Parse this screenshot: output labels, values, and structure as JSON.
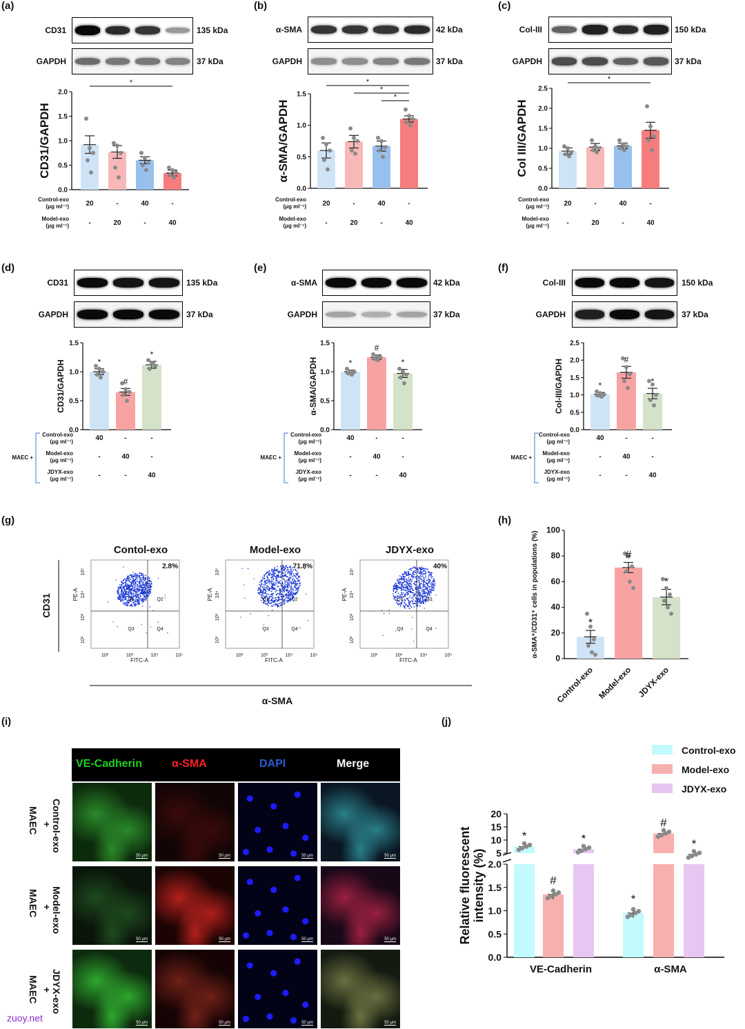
{
  "panels": {
    "a": "(a)",
    "b": "(b)",
    "c": "(c)",
    "d": "(d)",
    "e": "(e)",
    "f": "(f)",
    "g": "(g)",
    "h": "(h)",
    "i": "(i)",
    "j": "(j)"
  },
  "blots": {
    "a": {
      "top": "CD31",
      "top_kda": "135 kDa",
      "bottom": "GAPDH",
      "bottom_kda": "37 kDa"
    },
    "b": {
      "top": "α-SMA",
      "top_kda": "42 kDa",
      "bottom": "GAPDH",
      "bottom_kda": "37 kDa"
    },
    "c": {
      "top": "Col-III",
      "top_kda": "150 kDa",
      "bottom": "GAPDH",
      "bottom_kda": "37 kDa"
    },
    "d": {
      "top": "CD31",
      "top_kda": "135 kDa",
      "bottom": "GAPDH",
      "bottom_kda": "37 kDa"
    },
    "e": {
      "top": "α-SMA",
      "top_kda": "42 kDa",
      "bottom": "GAPDH",
      "bottom_kda": "37 kDa"
    },
    "f": {
      "top": "Col-III",
      "top_kda": "150 kDa",
      "bottom": "GAPDH",
      "bottom_kda": "37 kDa"
    }
  },
  "treatment_table": {
    "control_exo": "Control-exo",
    "model_exo": "Model-exo",
    "jdyx_exo": "JDYX-exo",
    "unit": "(μg ml⁻¹)",
    "maec": "MAEC +",
    "abc_control": [
      "20",
      "-",
      "40",
      "-"
    ],
    "abc_model": [
      "-",
      "20",
      "-",
      "40"
    ],
    "def_control": [
      "40",
      "-",
      "-"
    ],
    "def_model": [
      "-",
      "40",
      "-"
    ],
    "def_jdyx": [
      "-",
      "-",
      "40"
    ]
  },
  "flow": {
    "titles": [
      "Contol-exo",
      "Model-exo",
      "JDYX-exo"
    ],
    "percents": [
      "2.8%",
      "71.8%",
      "40%"
    ],
    "y_axis": "CD31",
    "x_axis": "α-SMA",
    "pe": "PE-A",
    "fitc": "FITC-A",
    "quadrants": [
      "Q1",
      "Q2",
      "Q3",
      "Q4"
    ],
    "ticks": [
      "10²",
      "10³",
      "10⁴",
      "10⁵"
    ]
  },
  "microscopy": {
    "columns": [
      "VE-Cadherin",
      "α-SMA",
      "DAPI",
      "Merge"
    ],
    "column_colors": [
      "#1fd11f",
      "#ff2020",
      "#2a5bd6",
      "#ffffff"
    ],
    "rows": [
      {
        "label": "Control-exo",
        "plus": "+",
        "cell": "MAEC"
      },
      {
        "label": "Model-exo",
        "plus": "+",
        "cell": "MAEC"
      },
      {
        "label": "JDYX-exo",
        "plus": "+",
        "cell": "MAEC"
      }
    ],
    "scale_bar": "50 μm"
  },
  "watermark": "zuoy.net",
  "chart_data": [
    {
      "id": "a",
      "type": "bar",
      "ylabel": "CD31/GAPDH",
      "ylim": [
        0,
        2.0
      ],
      "yticks": [
        "0.0",
        "0.5",
        "1.0",
        "1.5",
        "2.0"
      ],
      "values": [
        0.92,
        0.77,
        0.6,
        0.34
      ],
      "errors": [
        0.18,
        0.13,
        0.07,
        0.06
      ],
      "colors": [
        "#cfe3f6",
        "#f8b8b8",
        "#98c0ec",
        "#f57d7d"
      ],
      "points": [
        [
          1.45,
          0.85,
          0.75,
          0.6,
          0.35
        ],
        [
          0.95,
          0.9,
          0.75,
          0.45,
          0.25
        ],
        [
          0.75,
          0.65,
          0.55,
          0.5,
          0.4
        ],
        [
          0.45,
          0.4,
          0.35,
          0.3,
          0.25
        ]
      ],
      "significance": [
        {
          "from": 0,
          "to": 3,
          "label": "*"
        }
      ]
    },
    {
      "id": "b",
      "type": "bar",
      "ylabel": "α-SMA/GAPDH",
      "ylim": [
        0,
        1.5
      ],
      "yticks": [
        "0.0",
        "0.5",
        "1.0",
        "1.5"
      ],
      "values": [
        0.6,
        0.74,
        0.67,
        1.1
      ],
      "errors": [
        0.12,
        0.1,
        0.08,
        0.05
      ],
      "colors": [
        "#cfe3f6",
        "#f8b8b8",
        "#98c0ec",
        "#f57d7d"
      ],
      "points": [
        [
          0.8,
          0.7,
          0.6,
          0.45,
          0.3
        ],
        [
          0.95,
          0.8,
          0.75,
          0.6,
          0.55
        ],
        [
          0.8,
          0.75,
          0.65,
          0.6,
          0.5
        ],
        [
          1.25,
          1.15,
          1.1,
          1.05,
          1.0
        ]
      ],
      "significance": [
        {
          "from": 0,
          "to": 3,
          "label": "*"
        },
        {
          "from": 1,
          "to": 3,
          "label": "*"
        },
        {
          "from": 2,
          "to": 3,
          "label": "*"
        }
      ]
    },
    {
      "id": "c",
      "type": "bar",
      "ylabel": "Col III/GAPDH",
      "ylim": [
        0,
        2.5
      ],
      "yticks": [
        "0.0",
        "0.5",
        "1.0",
        "1.5",
        "2.0",
        "2.5"
      ],
      "values": [
        0.93,
        1.03,
        1.06,
        1.45
      ],
      "errors": [
        0.08,
        0.09,
        0.07,
        0.2
      ],
      "colors": [
        "#cfe3f6",
        "#f8b8b8",
        "#98c0ec",
        "#f57d7d"
      ],
      "points": [
        [
          1.05,
          1.0,
          0.9,
          0.85,
          0.8
        ],
        [
          1.2,
          1.05,
          1.0,
          0.95,
          0.9
        ],
        [
          1.2,
          1.1,
          1.05,
          1.0,
          0.95
        ],
        [
          2.05,
          1.55,
          1.3,
          1.2,
          0.95
        ]
      ],
      "significance": [
        {
          "from": 0,
          "to": 3,
          "label": "*"
        }
      ]
    },
    {
      "id": "d",
      "type": "bar",
      "ylabel": "CD31/GAPDH",
      "ylim": [
        0,
        1.5
      ],
      "yticks": [
        "0.0",
        "0.5",
        "1.0",
        "1.5"
      ],
      "values": [
        1.0,
        0.65,
        1.12
      ],
      "errors": [
        0.05,
        0.06,
        0.06
      ],
      "colors": [
        "#cfe3f6",
        "#f8a3a3",
        "#d3e2c8"
      ],
      "points": [
        [
          1.1,
          1.05,
          1.0,
          0.95,
          0.9
        ],
        [
          0.8,
          0.7,
          0.65,
          0.6,
          0.5
        ],
        [
          1.2,
          1.15,
          1.1,
          1.05,
          1.15
        ]
      ],
      "marks": [
        "*",
        "#",
        "*"
      ]
    },
    {
      "id": "e",
      "type": "bar",
      "ylabel": "α-SMA/GAPDH",
      "ylim": [
        0,
        1.5
      ],
      "yticks": [
        "0.0",
        "0.5",
        "1.0",
        "1.5"
      ],
      "values": [
        1.0,
        1.25,
        0.97
      ],
      "errors": [
        0.03,
        0.04,
        0.07
      ],
      "colors": [
        "#cfe3f6",
        "#f8a3a3",
        "#d3e2c8"
      ],
      "points": [
        [
          1.05,
          1.0,
          1.0,
          0.97,
          0.95
        ],
        [
          1.3,
          1.27,
          1.25,
          1.22,
          1.2
        ],
        [
          1.05,
          1.0,
          0.95,
          0.9,
          0.8
        ]
      ],
      "marks": [
        "*",
        "#",
        "*"
      ]
    },
    {
      "id": "f",
      "type": "bar",
      "ylabel": "Col-III/GAPDH",
      "ylim": [
        0,
        2.5
      ],
      "yticks": [
        "0.0",
        "0.5",
        "1.0",
        "1.5",
        "2.0",
        "2.5"
      ],
      "values": [
        1.02,
        1.65,
        1.04
      ],
      "errors": [
        0.05,
        0.17,
        0.15
      ],
      "colors": [
        "#cfe3f6",
        "#f8a3a3",
        "#d3e2c8"
      ],
      "points": [
        [
          1.1,
          1.05,
          1.0,
          0.98,
          0.95
        ],
        [
          2.05,
          1.8,
          1.6,
          1.4,
          1.2
        ],
        [
          1.4,
          1.3,
          1.0,
          0.85,
          0.7
        ]
      ],
      "marks": [
        "*",
        "#",
        "*"
      ]
    },
    {
      "id": "h",
      "type": "bar",
      "ylabel": "α-SMA⁺/CD31⁺ cells in populations (%)",
      "ylim": [
        0,
        100
      ],
      "yticks": [
        "0",
        "20",
        "40",
        "60",
        "80",
        "100"
      ],
      "categories": [
        "Control-exo",
        "Model-exo",
        "JDYX-exo"
      ],
      "values": [
        17,
        71,
        48
      ],
      "errors": [
        5,
        4,
        6
      ],
      "colors": [
        "#cfe3f6",
        "#f8a3a3",
        "#d3e2c8"
      ],
      "points": [
        [
          35,
          25,
          15,
          10,
          5,
          3
        ],
        [
          82,
          80,
          72,
          68,
          60,
          55
        ],
        [
          62,
          55,
          50,
          45,
          40,
          35
        ]
      ],
      "marks": [
        "*",
        "#",
        "*"
      ]
    },
    {
      "id": "j",
      "type": "bar",
      "ylabel": "Relative fluorescent intensity (%)",
      "categories": [
        "VE-Cadherin",
        "α-SMA"
      ],
      "legend": [
        "Control-exo",
        "Model-exo",
        "JDYX-exo"
      ],
      "colors": [
        "#c2fafd",
        "#f8b0ae",
        "#e8c6f2"
      ],
      "lower_ticks": [
        "0.0",
        "0.5",
        "1.0",
        "1.5",
        "2.0"
      ],
      "upper_ticks": [
        "5",
        "10",
        "15",
        "20"
      ],
      "series": [
        {
          "name": "Control-exo",
          "values": [
            7.5,
            0.95
          ]
        },
        {
          "name": "Model-exo",
          "values": [
            1.35,
            12.5
          ]
        },
        {
          "name": "JDYX-exo",
          "values": [
            6.5,
            4.5
          ]
        }
      ],
      "marks": [
        [
          "*",
          "#",
          "*"
        ],
        [
          "*",
          "#",
          "*"
        ]
      ]
    }
  ]
}
